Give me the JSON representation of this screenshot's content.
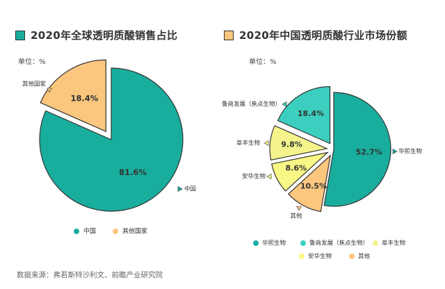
{
  "source": "数据来源：弗若斯特沙利文、前瞻产业研究院",
  "colors": {
    "teal_dark": "#19ad9d",
    "teal_light": "#3ccfc0",
    "yellow_green": "#f4f38c",
    "yellow": "#f8f684",
    "orange": "#fbc67e",
    "stroke": "#333333"
  },
  "chart_data": [
    {
      "type": "pie",
      "title": "2020年全球透明质酸销售占比",
      "unit": "单位：%",
      "slices": [
        {
          "label": "中国",
          "value": 81.6,
          "display": "81.6%",
          "color": "#19ad9d",
          "exploded": false
        },
        {
          "label": "其他国家",
          "value": 18.4,
          "display": "18.4%",
          "color": "#fbc67e",
          "exploded": true
        }
      ],
      "legend": [
        "中国",
        "其他国家"
      ],
      "legend_position": "bottom"
    },
    {
      "type": "pie",
      "title": "2020年中国透明质酸行业市场份额",
      "unit": "单位：%",
      "slices": [
        {
          "label": "华熙生物",
          "value": 52.7,
          "display": "52.7%",
          "color": "#19ad9d",
          "exploded": false
        },
        {
          "label": "其他",
          "value": 10.5,
          "display": "10.5%",
          "color": "#fbc67e",
          "exploded": true
        },
        {
          "label": "安华生物",
          "value": 8.6,
          "display": "8.6%",
          "color": "#f8f684",
          "exploded": true
        },
        {
          "label": "阜丰生物",
          "value": 9.8,
          "display": "9.8%",
          "color": "#f4f38c",
          "exploded": true
        },
        {
          "label": "鲁商发展（焦点生物）",
          "value": 18.4,
          "display": "18.4%",
          "color": "#3ccfc0",
          "exploded": true
        }
      ],
      "legend": [
        "华熙生物",
        "鲁商发展（焦点生物）",
        "阜丰生物",
        "安华生物",
        "其他"
      ],
      "legend_position": "bottom"
    }
  ]
}
